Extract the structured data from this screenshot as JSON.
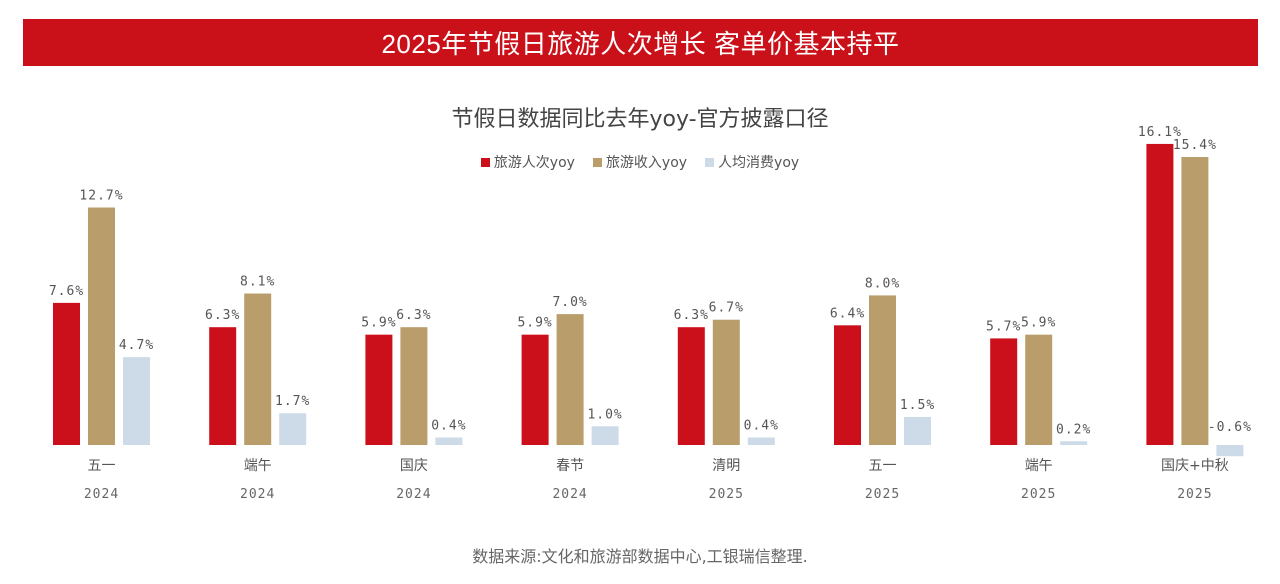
{
  "banner": {
    "title": "2025年节假日旅游人次增长 客单价基本持平"
  },
  "source": "数据来源:文化和旅游部数据中心,工银瑞信整理.",
  "chart_data": {
    "type": "bar",
    "title": "节假日数据同比去年yoy-官方披露口径",
    "xlabel": "",
    "ylabel": "",
    "ylim": [
      -1,
      17
    ],
    "grid": false,
    "legend_position": "top-center",
    "categories": [
      "五一",
      "端午",
      "国庆",
      "春节",
      "清明",
      "五一",
      "端午",
      "国庆+中秋"
    ],
    "category_years": [
      "2024",
      "2024",
      "2024",
      "2024",
      "2025",
      "2025",
      "2025",
      "2025"
    ],
    "series": [
      {
        "name": "旅游人次yoy",
        "color": "#cc101b",
        "values": [
          7.6,
          6.3,
          5.9,
          5.9,
          6.3,
          6.4,
          5.7,
          16.1
        ],
        "labels": [
          "7.6%",
          "6.3%",
          "5.9%",
          "5.9%",
          "6.3%",
          "6.4%",
          "5.7%",
          "16.1%"
        ]
      },
      {
        "name": "旅游收入yoy",
        "color": "#b99e6c",
        "values": [
          12.7,
          8.1,
          6.3,
          7.0,
          6.7,
          8.0,
          5.9,
          15.4
        ],
        "labels": [
          "12.7%",
          "8.1%",
          "6.3%",
          "7.0%",
          "6.7%",
          "8.0%",
          "5.9%",
          "15.4%"
        ]
      },
      {
        "name": "人均消费yoy",
        "color": "#cddbe9",
        "values": [
          4.7,
          1.7,
          0.4,
          1.0,
          0.4,
          1.5,
          0.2,
          -0.6
        ],
        "labels": [
          "4.7%",
          "1.7%",
          "0.4%",
          "1.0%",
          "0.4%",
          "1.5%",
          "0.2%",
          "-0.6%"
        ]
      }
    ]
  }
}
